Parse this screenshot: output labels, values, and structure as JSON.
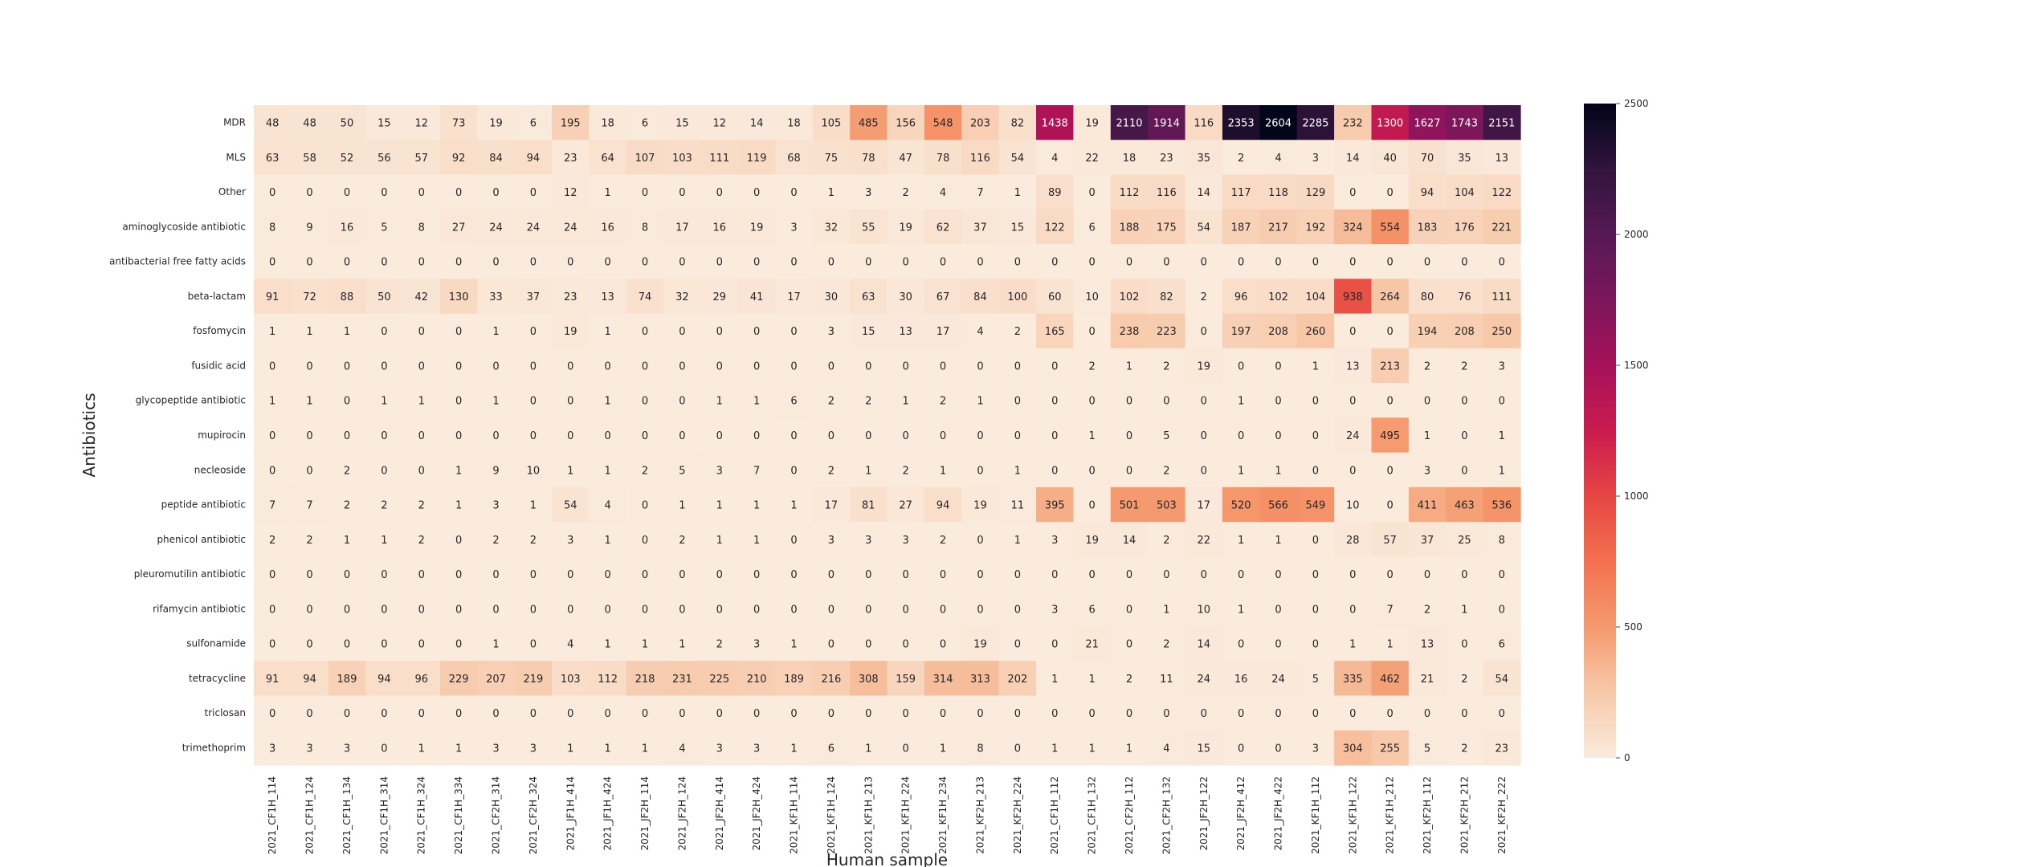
{
  "chart_data": {
    "type": "heatmap",
    "title": "",
    "xlabel": "Human sample",
    "ylabel": "Antibiotics",
    "x": [
      "2021_CF1H_114",
      "2021_CF1H_124",
      "2021_CF1H_134",
      "2021_CF1H_314",
      "2021_CF1H_324",
      "2021_CF1H_334",
      "2021_CF2H_314",
      "2021_CF2H_324",
      "2021_JF1H_414",
      "2021_JF1H_424",
      "2021_JF2H_114",
      "2021_JF2H_124",
      "2021_JF2H_414",
      "2021_JF2H_424",
      "2021_KF1H_114",
      "2021_KF1H_124",
      "2021_KF1H_213",
      "2021_KF1H_224",
      "2021_KF1H_234",
      "2021_KF2H_213",
      "2021_KF2H_224",
      "2021_CF1H_112",
      "2021_CF1H_132",
      "2021_CF2H_112",
      "2021_CF2H_132",
      "2021_JF2H_122",
      "2021_JF2H_412",
      "2021_JF2H_422",
      "2021_KF1H_112",
      "2021_KF1H_122",
      "2021_KF1H_212",
      "2021_KF2H_112",
      "2021_KF2H_212",
      "2021_KF2H_222"
    ],
    "y": [
      "MDR",
      "MLS",
      "Other",
      "aminoglycoside antibiotic",
      "antibacterial free fatty acids",
      "beta-lactam",
      "fosfomycin",
      "fusidic acid",
      "glycopeptide antibiotic",
      "mupirocin",
      "necleoside",
      "peptide antibiotic",
      "phenicol antibiotic",
      "pleuromutilin antibiotic",
      "rifamycin antibiotic",
      "sulfonamide",
      "tetracycline",
      "triclosan",
      "trimethoprim"
    ],
    "values": [
      [
        48,
        48,
        50,
        15,
        12,
        73,
        19,
        6,
        195,
        18,
        6,
        15,
        12,
        14,
        18,
        105,
        485,
        156,
        548,
        203,
        82,
        1438,
        19,
        2110,
        1914,
        116,
        2353,
        2604,
        2285,
        232,
        1300,
        1627,
        1743,
        2151
      ],
      [
        63,
        58,
        52,
        56,
        57,
        92,
        84,
        94,
        23,
        64,
        107,
        103,
        111,
        119,
        68,
        75,
        78,
        47,
        78,
        116,
        54,
        4,
        22,
        18,
        23,
        35,
        2,
        4,
        3,
        14,
        40,
        70,
        35,
        13
      ],
      [
        0,
        0,
        0,
        0,
        0,
        0,
        0,
        0,
        12,
        1,
        0,
        0,
        0,
        0,
        0,
        1,
        3,
        2,
        4,
        7,
        1,
        89,
        0,
        112,
        116,
        14,
        117,
        118,
        129,
        0,
        0,
        94,
        104,
        122
      ],
      [
        8,
        9,
        16,
        5,
        8,
        27,
        24,
        24,
        24,
        16,
        8,
        17,
        16,
        19,
        3,
        32,
        55,
        19,
        62,
        37,
        15,
        122,
        6,
        188,
        175,
        54,
        187,
        217,
        192,
        324,
        554,
        183,
        176,
        221
      ],
      [
        0,
        0,
        0,
        0,
        0,
        0,
        0,
        0,
        0,
        0,
        0,
        0,
        0,
        0,
        0,
        0,
        0,
        0,
        0,
        0,
        0,
        0,
        0,
        0,
        0,
        0,
        0,
        0,
        0,
        0,
        0,
        0,
        0,
        0
      ],
      [
        91,
        72,
        88,
        50,
        42,
        130,
        33,
        37,
        23,
        13,
        74,
        32,
        29,
        41,
        17,
        30,
        63,
        30,
        67,
        84,
        100,
        60,
        10,
        102,
        82,
        2,
        96,
        102,
        104,
        938,
        264,
        80,
        76,
        111
      ],
      [
        1,
        1,
        1,
        0,
        0,
        0,
        1,
        0,
        19,
        1,
        0,
        0,
        0,
        0,
        0,
        3,
        15,
        13,
        17,
        4,
        2,
        165,
        0,
        238,
        223,
        0,
        197,
        208,
        260,
        0,
        0,
        194,
        208,
        250
      ],
      [
        0,
        0,
        0,
        0,
        0,
        0,
        0,
        0,
        0,
        0,
        0,
        0,
        0,
        0,
        0,
        0,
        0,
        0,
        0,
        0,
        0,
        0,
        2,
        1,
        2,
        19,
        0,
        0,
        1,
        13,
        213,
        2,
        2,
        3
      ],
      [
        1,
        1,
        0,
        1,
        1,
        0,
        1,
        0,
        0,
        1,
        0,
        0,
        1,
        1,
        6,
        2,
        2,
        1,
        2,
        1,
        0,
        0,
        0,
        0,
        0,
        0,
        1,
        0,
        0,
        0,
        0,
        0,
        0,
        0
      ],
      [
        0,
        0,
        0,
        0,
        0,
        0,
        0,
        0,
        0,
        0,
        0,
        0,
        0,
        0,
        0,
        0,
        0,
        0,
        0,
        0,
        0,
        0,
        1,
        0,
        5,
        0,
        0,
        0,
        0,
        24,
        495,
        1,
        0,
        1
      ],
      [
        0,
        0,
        2,
        0,
        0,
        1,
        9,
        10,
        1,
        1,
        2,
        5,
        3,
        7,
        0,
        2,
        1,
        2,
        1,
        0,
        1,
        0,
        0,
        0,
        2,
        0,
        1,
        1,
        0,
        0,
        0,
        3,
        0,
        1
      ],
      [
        7,
        7,
        2,
        2,
        2,
        1,
        3,
        1,
        54,
        4,
        0,
        1,
        1,
        1,
        1,
        17,
        81,
        27,
        94,
        19,
        11,
        395,
        0,
        501,
        503,
        17,
        520,
        566,
        549,
        10,
        0,
        411,
        463,
        536
      ],
      [
        2,
        2,
        1,
        1,
        2,
        0,
        2,
        2,
        3,
        1,
        0,
        2,
        1,
        1,
        0,
        3,
        3,
        3,
        2,
        0,
        1,
        3,
        19,
        14,
        2,
        22,
        1,
        1,
        0,
        28,
        57,
        37,
        25,
        8
      ],
      [
        0,
        0,
        0,
        0,
        0,
        0,
        0,
        0,
        0,
        0,
        0,
        0,
        0,
        0,
        0,
        0,
        0,
        0,
        0,
        0,
        0,
        0,
        0,
        0,
        0,
        0,
        0,
        0,
        0,
        0,
        0,
        0,
        0,
        0
      ],
      [
        0,
        0,
        0,
        0,
        0,
        0,
        0,
        0,
        0,
        0,
        0,
        0,
        0,
        0,
        0,
        0,
        0,
        0,
        0,
        0,
        0,
        3,
        6,
        0,
        1,
        10,
        1,
        0,
        0,
        0,
        7,
        2,
        1,
        0
      ],
      [
        0,
        0,
        0,
        0,
        0,
        0,
        1,
        0,
        4,
        1,
        1,
        1,
        2,
        3,
        1,
        0,
        0,
        0,
        0,
        19,
        0,
        0,
        21,
        0,
        2,
        14,
        0,
        0,
        0,
        1,
        1,
        13,
        0,
        6
      ],
      [
        91,
        94,
        189,
        94,
        96,
        229,
        207,
        219,
        103,
        112,
        218,
        231,
        225,
        210,
        189,
        216,
        308,
        159,
        314,
        313,
        202,
        1,
        1,
        2,
        11,
        24,
        16,
        24,
        5,
        335,
        462,
        21,
        2,
        54
      ],
      [
        0,
        0,
        0,
        0,
        0,
        0,
        0,
        0,
        0,
        0,
        0,
        0,
        0,
        0,
        0,
        0,
        0,
        0,
        0,
        0,
        0,
        0,
        0,
        0,
        0,
        0,
        0,
        0,
        0,
        0,
        0,
        0,
        0,
        0
      ],
      [
        3,
        3,
        3,
        0,
        1,
        1,
        3,
        3,
        1,
        1,
        1,
        4,
        3,
        3,
        1,
        6,
        1,
        0,
        1,
        8,
        0,
        1,
        1,
        1,
        4,
        15,
        0,
        0,
        3,
        304,
        255,
        5,
        2,
        23
      ]
    ],
    "colorbar": {
      "min": 0,
      "max": 2500,
      "ticks": [
        0,
        500,
        1000,
        1500,
        2000,
        2500
      ],
      "colormap": "rocket_r"
    },
    "grid": false,
    "legend_position": "right"
  }
}
